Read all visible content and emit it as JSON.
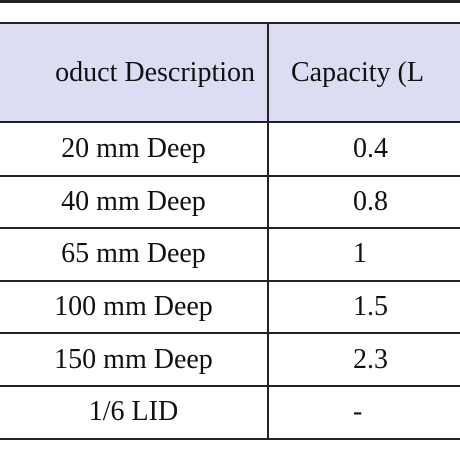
{
  "table": {
    "header": [
      "oduct Description",
      "Capacity (L"
    ],
    "rows": [
      [
        "20 mm Deep",
        "0.4"
      ],
      [
        "40 mm Deep",
        "0.8"
      ],
      [
        "65 mm Deep",
        "1"
      ],
      [
        "100 mm Deep",
        "1.5"
      ],
      [
        "150 mm Deep",
        "2.3"
      ],
      [
        "1/6 LID",
        "-"
      ]
    ]
  }
}
